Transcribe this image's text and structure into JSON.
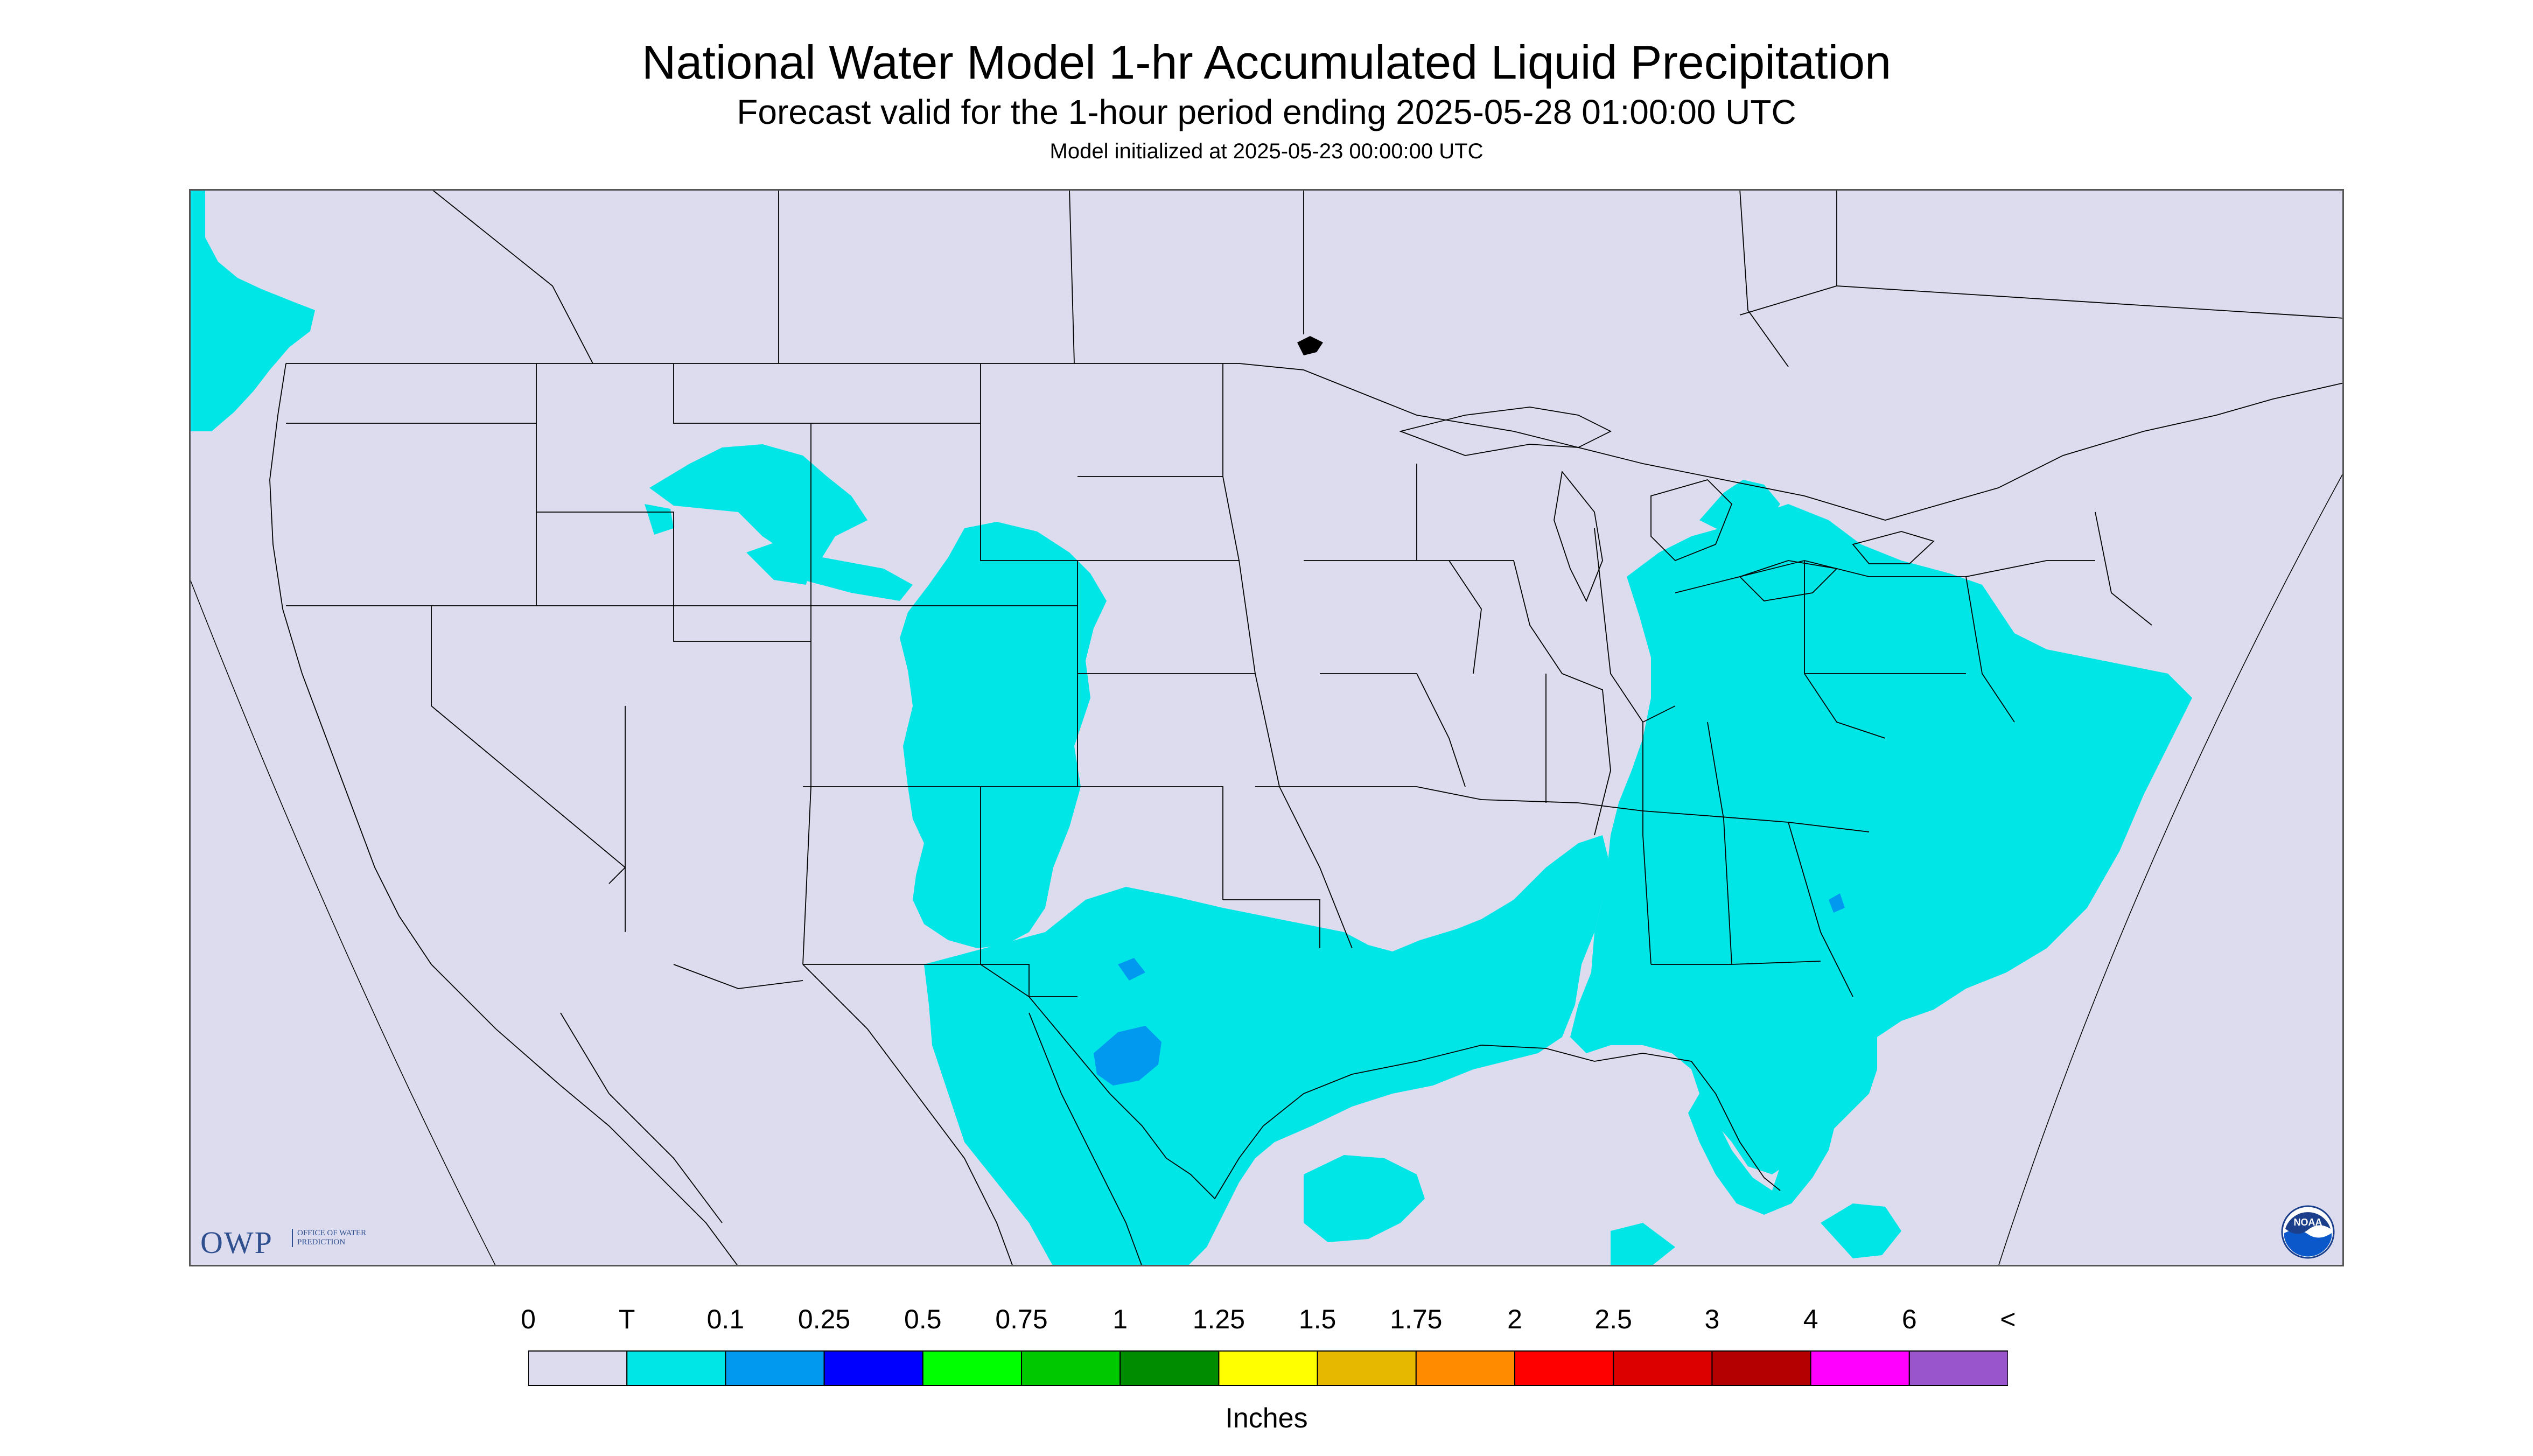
{
  "header": {
    "title": "National Water Model 1-hr Accumulated Liquid Precipitation",
    "subtitle": "Forecast valid for the 1-hour period ending 2025-05-28 01:00:00 UTC",
    "init": "Model initialized at 2025-05-23 00:00:00 UTC"
  },
  "map": {
    "region": "Contiguous United States",
    "background_color": "#dcdcee",
    "boundary_color": "#000000",
    "precip_areas": [
      {
        "name": "pacific-northwest",
        "category": "T",
        "color": "#00e6e6"
      },
      {
        "name": "montana-northern-rockies",
        "category": "T",
        "color": "#00e6e6"
      },
      {
        "name": "colorado-front-range",
        "category": "T",
        "color": "#00e6e6"
      },
      {
        "name": "southern-plains-gulf-coast",
        "category": "T",
        "color": "#00e6e6"
      },
      {
        "name": "eastern-us-great-lakes-to-florida",
        "category": "T",
        "color": "#00e6e6"
      },
      {
        "name": "central-texas-max",
        "category": "0.1",
        "color": "#0099f0"
      }
    ]
  },
  "logos": {
    "owp_text": "OWP",
    "owp_subtext": "OFFICE OF WATER PREDICTION",
    "noaa_text": "NOAA"
  },
  "colorbar": {
    "labels": [
      "0",
      "T",
      "0.1",
      "0.25",
      "0.5",
      "0.75",
      "1",
      "1.25",
      "1.5",
      "1.75",
      "2",
      "2.5",
      "3",
      "4",
      "6",
      "<"
    ],
    "colors": [
      "#dcdcee",
      "#00e6e6",
      "#0099f0",
      "#0000ff",
      "#00ff00",
      "#00c800",
      "#008c00",
      "#ffff00",
      "#e6b900",
      "#ff8c00",
      "#ff0000",
      "#dc0000",
      "#b40000",
      "#ff00ff",
      "#9955cc"
    ],
    "unit": "Inches"
  }
}
